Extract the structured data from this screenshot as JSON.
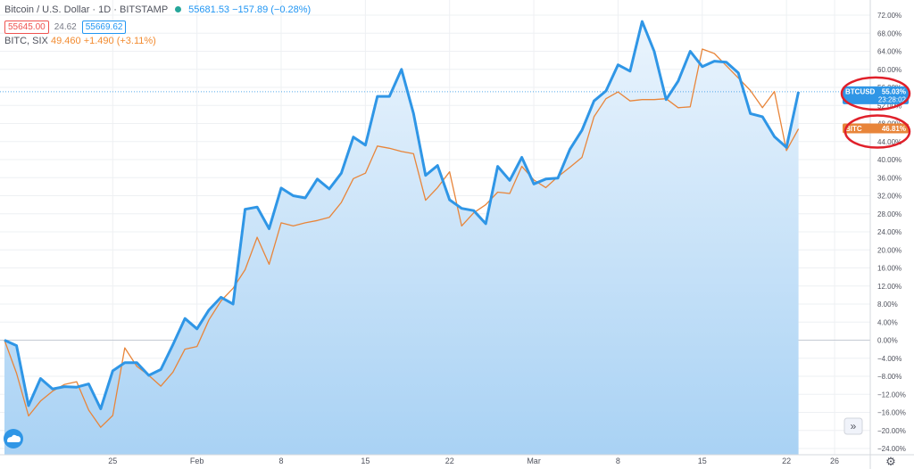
{
  "header": {
    "symbol_title": "Bitcoin / U.S. Dollar · 1D · BITSTAMP",
    "last_price": "55681.53",
    "change": "−157.89 (−0.28%)",
    "bid": "55645.00",
    "spread": "24.62",
    "ask": "55669.62",
    "compare_symbol": "BITC, SIX",
    "compare_last": "49.460",
    "compare_change": "+1.490 (+3.11%)"
  },
  "colors": {
    "btc_line": "#2f96e6",
    "bitc_line": "#e8853a",
    "area_top": "#eaf4fd",
    "area_bottom": "#a9d2f4",
    "grid": "#eef0f3",
    "highlight_ellipse": "#e0202a"
  },
  "chart_data": {
    "type": "line",
    "y_unit": "%",
    "ylim": [
      -24,
      72
    ],
    "y_ticks": [
      "72.00%",
      "68.00%",
      "64.00%",
      "60.00%",
      "56.00%",
      "52.00%",
      "48.00%",
      "44.00%",
      "40.00%",
      "36.00%",
      "32.00%",
      "28.00%",
      "24.00%",
      "20.00%",
      "16.00%",
      "12.00%",
      "8.00%",
      "4.00%",
      "0.00%",
      "−4.00%",
      "−8.00%",
      "−12.00%",
      "−16.00%",
      "−20.00%",
      "−24.00%"
    ],
    "x_ticks": [
      {
        "label": "25",
        "index": 9
      },
      {
        "label": "Feb",
        "index": 16
      },
      {
        "label": "8",
        "index": 23
      },
      {
        "label": "15",
        "index": 30
      },
      {
        "label": "22",
        "index": 37
      },
      {
        "label": "Mar",
        "index": 44
      },
      {
        "label": "8",
        "index": 51
      },
      {
        "label": "15",
        "index": 58
      },
      {
        "label": "22",
        "index": 65
      },
      {
        "label": "26",
        "index": 69
      }
    ],
    "x_count": 72,
    "zero_line": 0,
    "series": [
      {
        "name": "BTCUSD",
        "label_value": "55.03%",
        "countdown": "23:28:02",
        "style": "area",
        "points": [
          [
            0,
            0
          ],
          [
            1,
            -1.2
          ],
          [
            2,
            -14.5
          ],
          [
            3,
            -8.5
          ],
          [
            4,
            -10.8
          ],
          [
            5,
            -10.3
          ],
          [
            6,
            -10.4
          ],
          [
            7,
            -9.7
          ],
          [
            8,
            -15.2
          ],
          [
            9,
            -6.8
          ],
          [
            10,
            -5
          ],
          [
            11,
            -5
          ],
          [
            12,
            -7.8
          ],
          [
            13,
            -6.5
          ],
          [
            14,
            -1
          ],
          [
            15,
            4.8
          ],
          [
            16,
            2.5
          ],
          [
            17,
            6.7
          ],
          [
            18,
            9.5
          ],
          [
            19,
            8
          ],
          [
            20,
            29
          ],
          [
            21,
            29.5
          ],
          [
            22,
            24.7
          ],
          [
            23,
            33.7
          ],
          [
            24,
            32
          ],
          [
            25,
            31.5
          ],
          [
            26,
            35.7
          ],
          [
            27,
            33.5
          ],
          [
            28,
            37
          ],
          [
            29,
            45
          ],
          [
            30,
            43.2
          ],
          [
            31,
            54
          ],
          [
            32,
            54
          ],
          [
            33,
            60
          ],
          [
            34,
            50.2
          ],
          [
            35,
            36.5
          ],
          [
            36,
            38.7
          ],
          [
            37,
            31.1
          ],
          [
            38,
            29.2
          ],
          [
            39,
            28.7
          ],
          [
            40,
            25.8
          ],
          [
            41,
            38.5
          ],
          [
            42,
            35.4
          ],
          [
            43,
            40.5
          ],
          [
            44,
            34.6
          ],
          [
            45,
            35.7
          ],
          [
            46,
            35.9
          ],
          [
            47,
            42.3
          ],
          [
            48,
            46.5
          ],
          [
            49,
            53
          ],
          [
            50,
            55.2
          ],
          [
            51,
            61
          ],
          [
            52,
            59.6
          ],
          [
            53,
            70.6
          ],
          [
            54,
            64
          ],
          [
            55,
            53.3
          ],
          [
            56,
            57.4
          ],
          [
            57,
            64
          ],
          [
            58,
            60.6
          ],
          [
            59,
            61.8
          ],
          [
            60,
            61.6
          ],
          [
            61,
            59.2
          ],
          [
            62,
            50.2
          ],
          [
            63,
            49.5
          ],
          [
            64,
            45.1
          ],
          [
            65,
            42.7
          ],
          [
            66,
            55.03
          ]
        ]
      },
      {
        "name": "BITC",
        "label_value": "46.81%",
        "style": "line",
        "points": [
          [
            0,
            0
          ],
          [
            1,
            -7.3
          ],
          [
            2,
            -16.8
          ],
          [
            3,
            -13.5
          ],
          [
            4,
            -11.3
          ],
          [
            5,
            -9.8
          ],
          [
            6,
            -9.2
          ],
          [
            7,
            -15.5
          ],
          [
            8,
            -19.3
          ],
          [
            9,
            -16.7
          ],
          [
            10,
            -1.7
          ],
          [
            11,
            -5.8
          ],
          [
            12,
            -7.8
          ],
          [
            13,
            -10.2
          ],
          [
            14,
            -7.1
          ],
          [
            15,
            -2
          ],
          [
            16,
            -1.4
          ],
          [
            17,
            4.5
          ],
          [
            18,
            8.7
          ],
          [
            19,
            11.5
          ],
          [
            20,
            15.6
          ],
          [
            21,
            22.8
          ],
          [
            22,
            16.8
          ],
          [
            23,
            26
          ],
          [
            24,
            25.3
          ],
          [
            25,
            26
          ],
          [
            26,
            26.5
          ],
          [
            27,
            27.2
          ],
          [
            28,
            30.5
          ],
          [
            29,
            35.8
          ],
          [
            30,
            37
          ],
          [
            31,
            43
          ],
          [
            32,
            42.5
          ],
          [
            33,
            41.8
          ],
          [
            34,
            41.3
          ],
          [
            35,
            31
          ],
          [
            36,
            33.8
          ],
          [
            37,
            37.3
          ],
          [
            38,
            25.3
          ],
          [
            39,
            28.2
          ],
          [
            40,
            30
          ],
          [
            41,
            32.8
          ],
          [
            42,
            32.5
          ],
          [
            43,
            38.5
          ],
          [
            44,
            35.5
          ],
          [
            45,
            33.8
          ],
          [
            46,
            36.2
          ],
          [
            47,
            38.3
          ],
          [
            48,
            40.5
          ],
          [
            49,
            49.5
          ],
          [
            50,
            53.5
          ],
          [
            51,
            55
          ],
          [
            52,
            53
          ],
          [
            53,
            53.3
          ],
          [
            54,
            53.3
          ],
          [
            55,
            53.5
          ],
          [
            56,
            51.5
          ],
          [
            57,
            51.7
          ],
          [
            58,
            64.5
          ],
          [
            59,
            63.5
          ],
          [
            60,
            60.8
          ],
          [
            61,
            58.1
          ],
          [
            62,
            55.3
          ],
          [
            63,
            51.5
          ],
          [
            64,
            55.1
          ],
          [
            65,
            42
          ],
          [
            66,
            46.81
          ]
        ]
      }
    ]
  },
  "controls": {
    "scroll_right": "»",
    "settings": "⚙",
    "logo": "tradingview-cloud-icon"
  }
}
